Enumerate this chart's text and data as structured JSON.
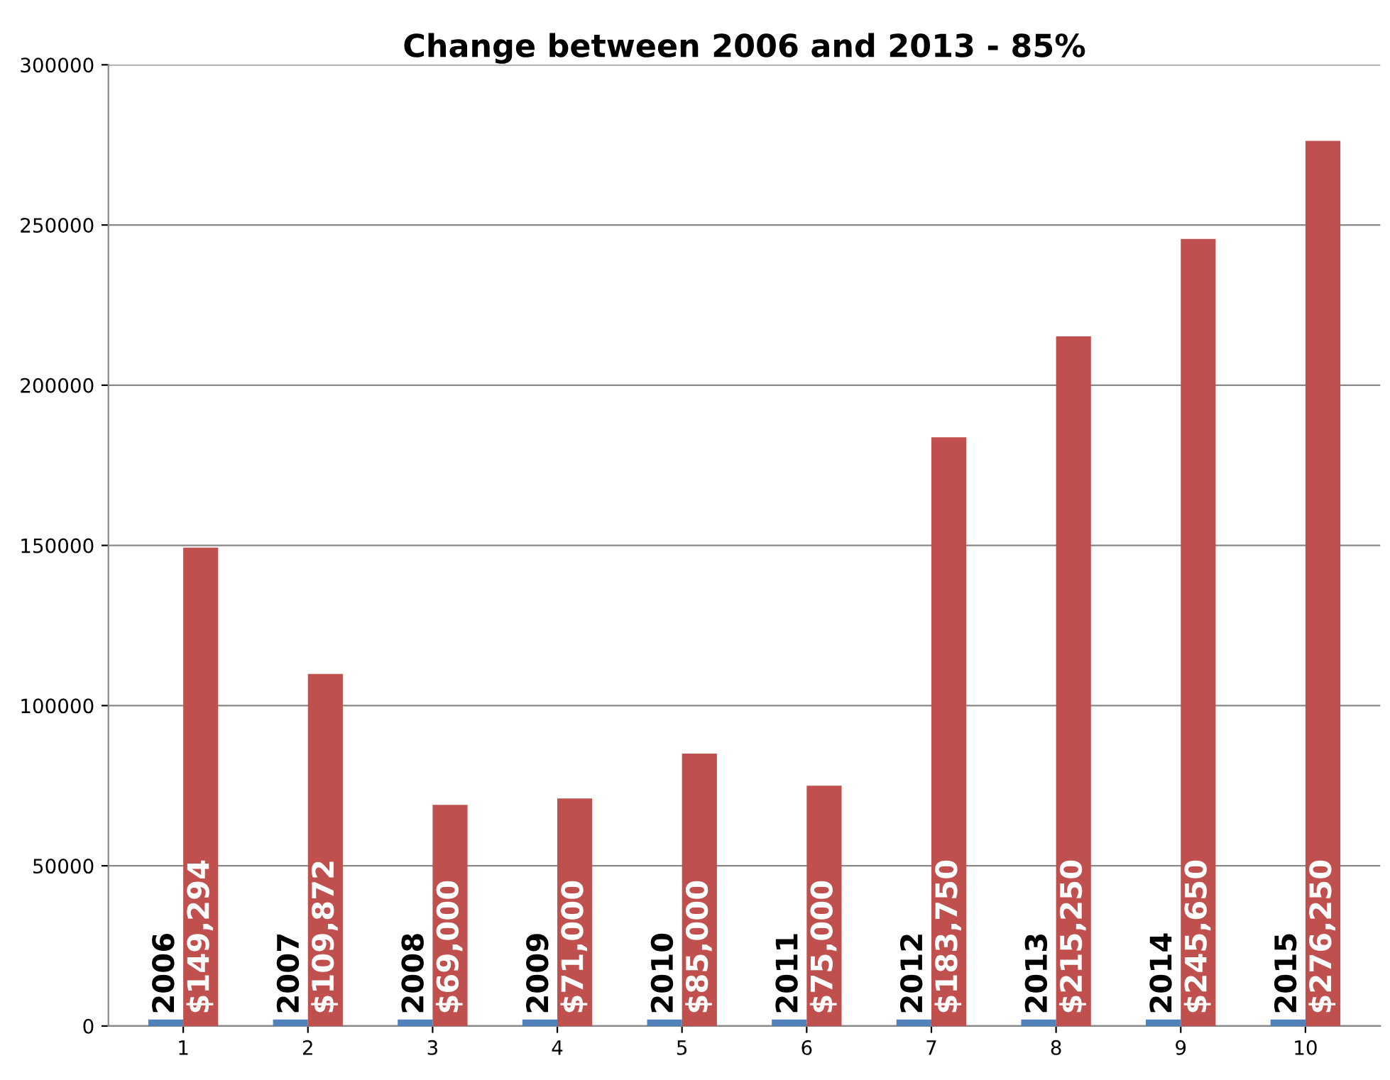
{
  "chart_data": {
    "type": "bar",
    "title": "Change between 2006 and 2013 - 85%",
    "categories": [
      "1",
      "2",
      "3",
      "4",
      "5",
      "6",
      "7",
      "8",
      "9",
      "10"
    ],
    "series": [
      {
        "color": "#4f81bd",
        "values": [
          2006,
          2007,
          2008,
          2009,
          2010,
          2011,
          2012,
          2013,
          2014,
          2015
        ],
        "value_labels": [
          "2006",
          "2007",
          "2008",
          "2009",
          "2010",
          "2011",
          "2012",
          "2013",
          "2014",
          "2015"
        ]
      },
      {
        "color": "#c0504d",
        "values": [
          149294,
          109872,
          69000,
          71000,
          85000,
          75000,
          183750,
          215250,
          245650,
          276250
        ],
        "value_labels": [
          "$149,294",
          "$109,872",
          "$69,000",
          "$71,000",
          "$85,000",
          "$75,000",
          "$183,750",
          "$215,250",
          "$245,650",
          "$276,250"
        ]
      }
    ],
    "ylim": [
      0,
      300000
    ],
    "yticks": [
      0,
      50000,
      100000,
      150000,
      200000,
      250000,
      300000
    ],
    "grid": "y",
    "legend": false
  }
}
